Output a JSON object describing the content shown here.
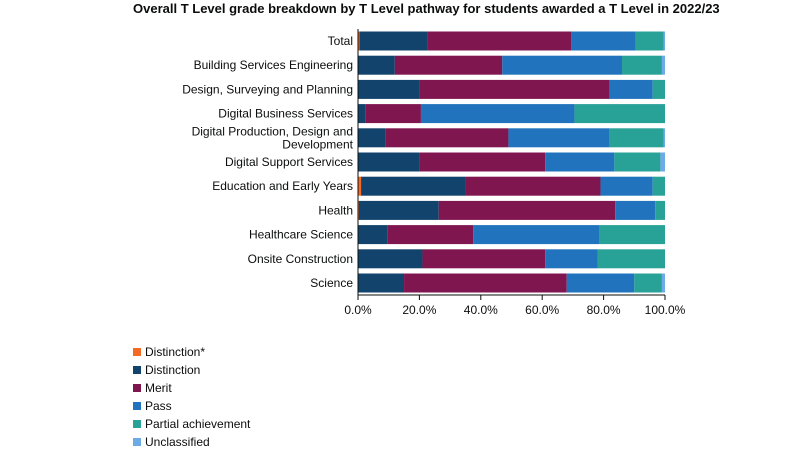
{
  "chart_data": {
    "type": "bar",
    "orientation": "horizontal",
    "stacked": true,
    "title": "Overall T Level grade breakdown by T Level pathway for students awarded a T Level in 2022/23",
    "xlabel": "",
    "ylabel": "",
    "xlim": [
      0,
      100
    ],
    "x_ticks": [
      "0.0%",
      "20.0%",
      "40.0%",
      "60.0%",
      "80.0%",
      "100.0%"
    ],
    "grid": false,
    "legend_position": "bottom-left",
    "categories": [
      "Total",
      "Building Services Engineering",
      "Design, Surveying and Planning",
      "Digital Business Services",
      "Digital Production, Design and Development",
      "Digital Support Services",
      "Education and Early Years",
      "Health",
      "Healthcare Science",
      "Onsite Construction",
      "Science"
    ],
    "category_lines": [
      [
        "Total"
      ],
      [
        "Building Services Engineering"
      ],
      [
        "Design, Surveying and Planning"
      ],
      [
        "Digital Business Services"
      ],
      [
        "Digital Production, Design and",
        "Development"
      ],
      [
        "Digital Support Services"
      ],
      [
        "Education and Early Years"
      ],
      [
        "Health"
      ],
      [
        "Healthcare Science"
      ],
      [
        "Onsite Construction"
      ],
      [
        "Science"
      ]
    ],
    "series": [
      {
        "name": "Distinction*",
        "color": "#f46a25",
        "values": [
          0.5,
          0,
          0,
          0,
          0,
          0,
          1,
          0.3,
          0,
          0,
          0
        ]
      },
      {
        "name": "Distinction",
        "color": "#12436d",
        "values": [
          22,
          12,
          20,
          2.5,
          9,
          20,
          34,
          26,
          9.5,
          21,
          15
        ]
      },
      {
        "name": "Merit",
        "color": "#801650",
        "values": [
          47,
          35,
          62,
          18,
          40,
          41,
          44,
          57.5,
          28,
          40,
          53
        ]
      },
      {
        "name": "Pass",
        "color": "#2073bc",
        "values": [
          21,
          39,
          14,
          50,
          33,
          22.5,
          17,
          13,
          41,
          17,
          22
        ]
      },
      {
        "name": "Partial achievement",
        "color": "#28a197",
        "values": [
          9,
          13,
          4,
          29.5,
          17.5,
          15,
          4,
          3.2,
          21.5,
          22,
          9
        ]
      },
      {
        "name": "Unclassified",
        "color": "#6babe6",
        "values": [
          0.5,
          1,
          0,
          0,
          0.5,
          1.5,
          0,
          0,
          0,
          0,
          1
        ]
      }
    ]
  }
}
